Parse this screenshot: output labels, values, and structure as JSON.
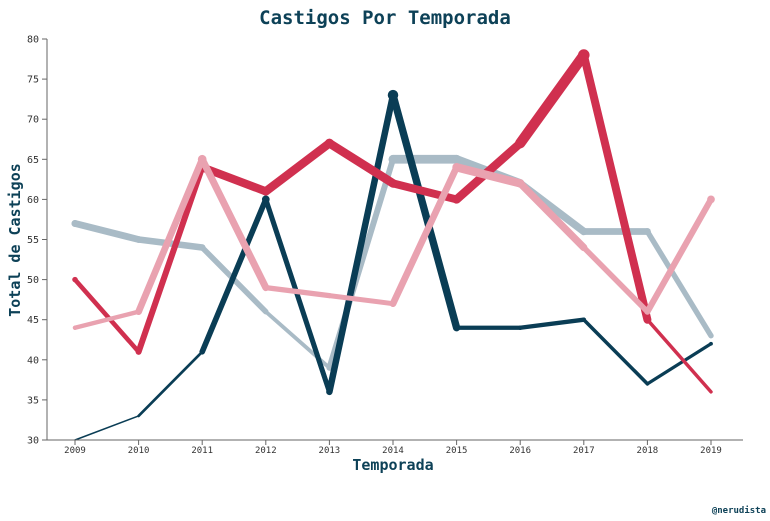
{
  "colors": {
    "title": "#0d4157",
    "navy": "#0a3d55",
    "crimson": "#d0304f",
    "slate": "#a9bbc6",
    "pink": "#e9a2b0",
    "axis": "#666666",
    "credit": "#0d4157"
  },
  "credit": "@nerudista",
  "chart_data": {
    "type": "line",
    "title": "Castigos Por Temporada",
    "xlabel": "Temporada",
    "ylabel": "Total de Castigos",
    "ylim": [
      30,
      80
    ],
    "yticks": [
      30,
      35,
      40,
      45,
      50,
      55,
      60,
      65,
      70,
      75,
      80
    ],
    "grid": false,
    "legend": "none",
    "variable_width": true,
    "categories": [
      "2009",
      "2010",
      "2011",
      "2012",
      "2013",
      "2014",
      "2015",
      "2016",
      "2017",
      "2018",
      "2019"
    ],
    "series": [
      {
        "color": "slate",
        "values": [
          57,
          55,
          54,
          46,
          39,
          65,
          65,
          62,
          56,
          56,
          43
        ]
      },
      {
        "color": "navy",
        "values": [
          30,
          33,
          41,
          60,
          36,
          73,
          44,
          44,
          45,
          37,
          42
        ]
      },
      {
        "color": "crimson",
        "values": [
          50,
          41,
          64,
          61,
          67,
          62,
          60,
          67,
          78,
          45,
          36
        ]
      },
      {
        "color": "pink",
        "values": [
          44,
          46,
          65,
          49,
          48,
          47,
          64,
          62,
          54,
          46,
          60
        ]
      }
    ]
  }
}
